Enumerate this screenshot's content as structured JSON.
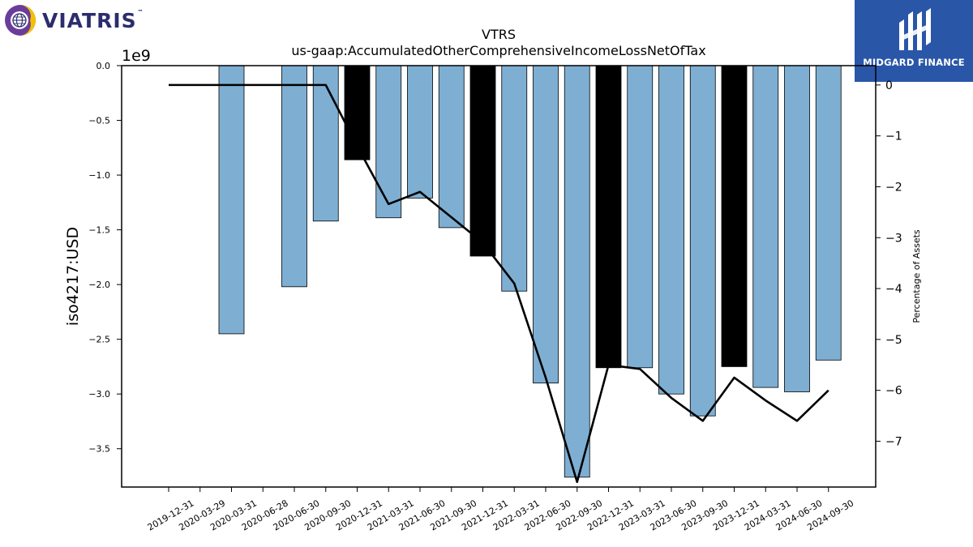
{
  "logos": {
    "left": {
      "text": "VIATRIS",
      "trademark": "™",
      "icon": "globe-icon",
      "colors": [
        "#6a3d9a",
        "#f2c200",
        "#2b2d6e"
      ]
    },
    "right": {
      "text": "MIDGARD FINANCE",
      "icon": "midgard-mark-icon",
      "background": "#2a56a8"
    }
  },
  "chart_data": {
    "type": "bar",
    "title": "VTRS",
    "subtitle": "us-gaap:AccumulatedOtherComprehensiveIncomeLossNetOfTax",
    "ylabel": "iso4217:USD",
    "y_offset_text": "1e9",
    "y2label": "Percentage of Assets",
    "ylim": [
      -3.85,
      0.0
    ],
    "y_ticks": [
      0.0,
      -0.5,
      -1.0,
      -1.5,
      -2.0,
      -2.5,
      -3.0,
      -3.5
    ],
    "y_tick_labels": [
      "0.0",
      "−0.5",
      "−1.0",
      "−1.5",
      "−2.0",
      "−2.5",
      "−3.0",
      "−3.5"
    ],
    "y2lim": [
      -7.9,
      0.38
    ],
    "y2_ticks": [
      0,
      -1,
      -2,
      -3,
      -4,
      -5,
      -6,
      -7
    ],
    "y2_tick_labels": [
      "0",
      "−1",
      "−2",
      "−3",
      "−4",
      "−5",
      "−6",
      "−7"
    ],
    "categories": [
      "2019-12-31",
      "2020-03-29",
      "2020-03-31",
      "2020-06-28",
      "2020-06-30",
      "2020-09-30",
      "2020-12-31",
      "2021-03-31",
      "2021-06-30",
      "2021-09-30",
      "2021-12-31",
      "2022-03-31",
      "2022-06-30",
      "2022-09-30",
      "2022-12-31",
      "2023-03-31",
      "2023-06-30",
      "2023-09-30",
      "2023-12-31",
      "2024-03-31",
      "2024-06-30",
      "2024-09-30"
    ],
    "values": [
      null,
      null,
      -2.45,
      null,
      -2.02,
      -1.42,
      -0.86,
      -1.39,
      -1.21,
      -1.48,
      -1.74,
      -2.06,
      -2.9,
      -3.76,
      -2.76,
      -2.76,
      -3.0,
      -3.2,
      -2.75,
      -2.94,
      -2.98,
      -2.69
    ],
    "highlight": [
      false,
      false,
      false,
      false,
      false,
      false,
      true,
      false,
      false,
      false,
      true,
      false,
      false,
      false,
      true,
      false,
      false,
      false,
      true,
      false,
      false,
      false
    ],
    "series": [
      {
        "type": "line",
        "axis": "right",
        "values": [
          0.0,
          0.0,
          0.0,
          0.0,
          0.0,
          0.0,
          -1.2,
          -2.34,
          -2.1,
          -2.6,
          -3.1,
          -3.9,
          -5.75,
          -7.8,
          -5.5,
          -5.58,
          -6.15,
          -6.6,
          -5.75,
          -6.2,
          -6.6,
          -6.0
        ]
      }
    ],
    "colors": {
      "bar": "#7eafd3",
      "bar_highlight": "#000000",
      "bar_edge": "#000000",
      "line": "#000000"
    },
    "grid": false
  }
}
